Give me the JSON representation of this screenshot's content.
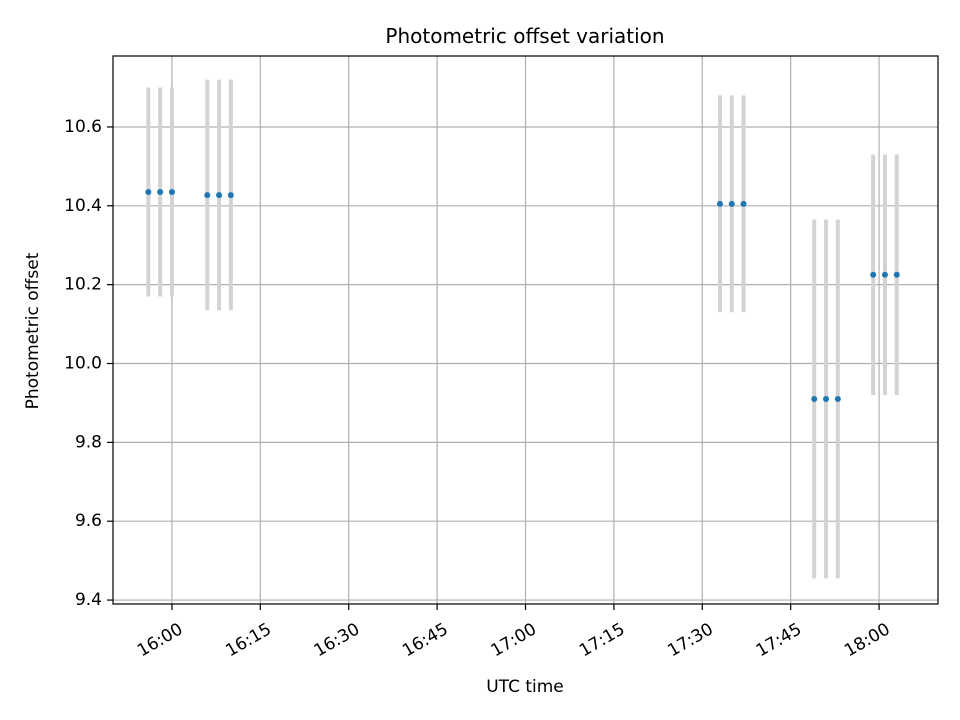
{
  "chart_data": {
    "type": "scatter",
    "title": "Photometric offset variation",
    "xlabel": "UTC time",
    "ylabel": "Photometric offset",
    "x_is_time": true,
    "xlim": [
      "15:50",
      "18:10"
    ],
    "ylim": [
      9.39,
      10.78
    ],
    "grid": true,
    "x_ticks": [
      "16:00",
      "16:15",
      "16:30",
      "16:45",
      "17:00",
      "17:15",
      "17:30",
      "17:45",
      "18:00"
    ],
    "y_ticks": [
      "9.4",
      "9.6",
      "9.8",
      "10.0",
      "10.2",
      "10.4",
      "10.6"
    ],
    "point_color": "#1f77b4",
    "errorbar_color": "#d3d3d3",
    "points": [
      {
        "t": "15:56",
        "y": 10.435,
        "low": 10.17,
        "high": 10.7
      },
      {
        "t": "15:58",
        "y": 10.435,
        "low": 10.17,
        "high": 10.7
      },
      {
        "t": "16:00",
        "y": 10.435,
        "low": 10.17,
        "high": 10.7
      },
      {
        "t": "16:06",
        "y": 10.427,
        "low": 10.135,
        "high": 10.72
      },
      {
        "t": "16:08",
        "y": 10.427,
        "low": 10.135,
        "high": 10.72
      },
      {
        "t": "16:10",
        "y": 10.427,
        "low": 10.135,
        "high": 10.72
      },
      {
        "t": "17:33",
        "y": 10.405,
        "low": 10.13,
        "high": 10.68
      },
      {
        "t": "17:35",
        "y": 10.405,
        "low": 10.13,
        "high": 10.68
      },
      {
        "t": "17:37",
        "y": 10.405,
        "low": 10.13,
        "high": 10.68
      },
      {
        "t": "17:49",
        "y": 9.91,
        "low": 9.455,
        "high": 10.365
      },
      {
        "t": "17:51",
        "y": 9.91,
        "low": 9.455,
        "high": 10.365
      },
      {
        "t": "17:53",
        "y": 9.91,
        "low": 9.455,
        "high": 10.365
      },
      {
        "t": "17:59",
        "y": 10.225,
        "low": 9.92,
        "high": 10.53
      },
      {
        "t": "18:01",
        "y": 10.225,
        "low": 9.92,
        "high": 10.53
      },
      {
        "t": "18:03",
        "y": 10.225,
        "low": 9.92,
        "high": 10.53
      }
    ]
  }
}
